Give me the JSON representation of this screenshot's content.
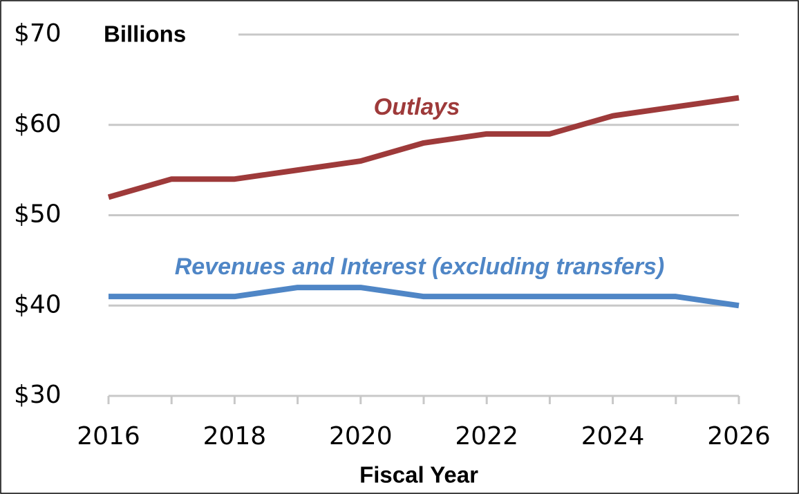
{
  "chart_data": {
    "type": "line",
    "units_label": "Billions",
    "x_label": "Fiscal Year",
    "x": [
      2016,
      2017,
      2018,
      2019,
      2020,
      2021,
      2022,
      2023,
      2024,
      2025,
      2026
    ],
    "series": [
      {
        "name": "Outlays",
        "color": "#9e3a3a",
        "values": [
          52,
          54,
          54,
          55,
          56,
          58,
          59,
          59,
          61,
          62,
          63
        ]
      },
      {
        "name": "Revenues and Interest (excluding transfers)",
        "color": "#4f86c6",
        "values": [
          41,
          41,
          41,
          42,
          42,
          41,
          41,
          41,
          41,
          41,
          40
        ]
      }
    ],
    "xlim": [
      2016,
      2026
    ],
    "xticks": [
      2016,
      2018,
      2020,
      2022,
      2024,
      2026
    ],
    "ylim": [
      30,
      70
    ],
    "yticks": [
      {
        "value": 30,
        "label": "$30"
      },
      {
        "value": 40,
        "label": "$40"
      },
      {
        "value": 50,
        "label": "$50"
      },
      {
        "value": 60,
        "label": "$60"
      },
      {
        "value": 70,
        "label": "$70"
      }
    ],
    "grid": true
  }
}
